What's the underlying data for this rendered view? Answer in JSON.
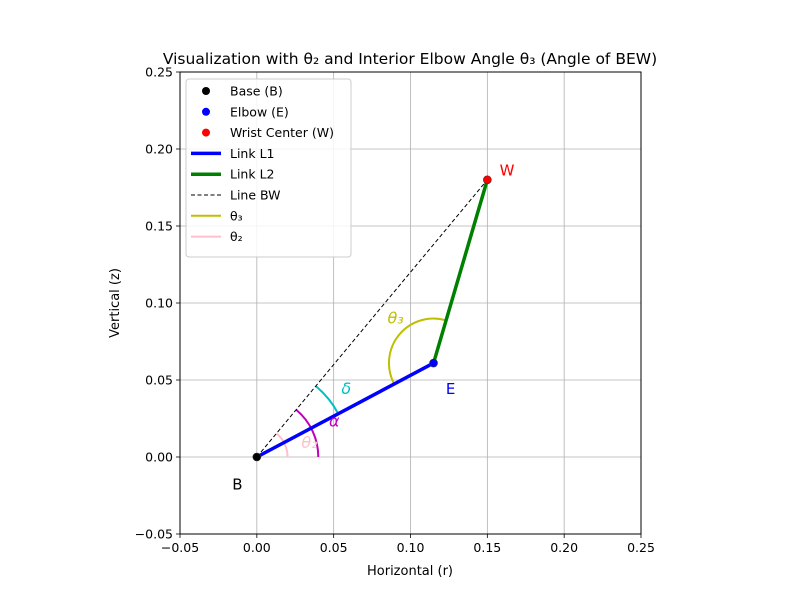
{
  "chart_data": {
    "type": "line",
    "title": "Visualization with θ₂ and Interior Elbow Angle θ₃ (Angle of BEW)",
    "xlabel": "Horizontal (r)",
    "ylabel": "Vertical (z)",
    "xlim": [
      -0.05,
      0.25
    ],
    "ylim": [
      -0.05,
      0.25
    ],
    "xticks": [
      -0.05,
      0.0,
      0.05,
      0.1,
      0.15,
      0.2,
      0.25
    ],
    "yticks": [
      -0.05,
      0.0,
      0.05,
      0.1,
      0.15,
      0.2,
      0.25
    ],
    "xtick_labels": [
      "−0.05",
      "0.00",
      "0.05",
      "0.10",
      "0.15",
      "0.20",
      "0.25"
    ],
    "ytick_labels": [
      "−0.05",
      "0.00",
      "0.05",
      "0.10",
      "0.15",
      "0.20",
      "0.25"
    ],
    "grid": true,
    "legend_position": "top-left",
    "points": [
      {
        "name": "Base (B)",
        "x": 0.0,
        "y": 0.0,
        "color": "#000000",
        "label": "B",
        "label_x": -0.016,
        "label_y": -0.018,
        "label_color": "#000000"
      },
      {
        "name": "Elbow (E)",
        "x": 0.115,
        "y": 0.061,
        "color": "#0000ff",
        "label": "E",
        "label_x": 0.123,
        "label_y": 0.044,
        "label_color": "#0000ff"
      },
      {
        "name": "Wrist Center (W)",
        "x": 0.15,
        "y": 0.18,
        "color": "#ff0000",
        "label": "W",
        "label_x": 0.158,
        "label_y": 0.186,
        "label_color": "#ff0000"
      }
    ],
    "series": [
      {
        "name": "Link L1",
        "x": [
          0.0,
          0.115
        ],
        "y": [
          0.0,
          0.061
        ],
        "color": "#0000ff",
        "style": "solid"
      },
      {
        "name": "Link L2",
        "x": [
          0.115,
          0.15
        ],
        "y": [
          0.061,
          0.18
        ],
        "color": "#008000",
        "style": "solid"
      },
      {
        "name": "Line BW",
        "x": [
          0.0,
          0.15
        ],
        "y": [
          0.0,
          0.18
        ],
        "color": "#000000",
        "style": "dashed"
      }
    ],
    "arcs": [
      {
        "name": "θ₃",
        "legend": true,
        "cx": 0.115,
        "cy": 0.061,
        "r": 0.029,
        "start_deg": 73.6,
        "end_deg": 207.9,
        "color": "#bfbf00",
        "label": "θ₃",
        "label_x": 0.085,
        "label_y": 0.09
      },
      {
        "name": "θ₂",
        "legend": true,
        "cx": 0.0,
        "cy": 0.0,
        "r": 0.02,
        "start_deg": 0,
        "end_deg": 50.2,
        "color": "#ffc0cb",
        "label": "θ₂",
        "label_x": 0.029,
        "label_y": 0.009
      },
      {
        "name": "α",
        "legend": false,
        "cx": 0.0,
        "cy": 0.0,
        "r": 0.04,
        "start_deg": 0,
        "end_deg": 50.2,
        "color": "#bf00bf",
        "label": "α",
        "label_x": 0.047,
        "label_y": 0.023
      },
      {
        "name": "δ",
        "legend": false,
        "cx": 0.0,
        "cy": 0.0,
        "r": 0.06,
        "start_deg": 27.9,
        "end_deg": 50.2,
        "color": "#00bfbf",
        "label": "δ",
        "label_x": 0.055,
        "label_y": 0.044
      }
    ],
    "legend": [
      {
        "kind": "marker",
        "label": "Base (B)",
        "color": "#000000"
      },
      {
        "kind": "marker",
        "label": "Elbow (E)",
        "color": "#0000ff"
      },
      {
        "kind": "marker",
        "label": "Wrist Center (W)",
        "color": "#ff0000"
      },
      {
        "kind": "line",
        "label": "Link L1",
        "color": "#0000ff",
        "dash": false,
        "thick": true
      },
      {
        "kind": "line",
        "label": "Link L2",
        "color": "#008000",
        "dash": false,
        "thick": true
      },
      {
        "kind": "line",
        "label": "Line BW",
        "color": "#000000",
        "dash": true,
        "thick": false
      },
      {
        "kind": "line",
        "label": "θ₃",
        "color": "#bfbf00",
        "dash": false,
        "thick": false
      },
      {
        "kind": "line",
        "label": "θ₂",
        "color": "#ffc0cb",
        "dash": false,
        "thick": false
      }
    ]
  }
}
